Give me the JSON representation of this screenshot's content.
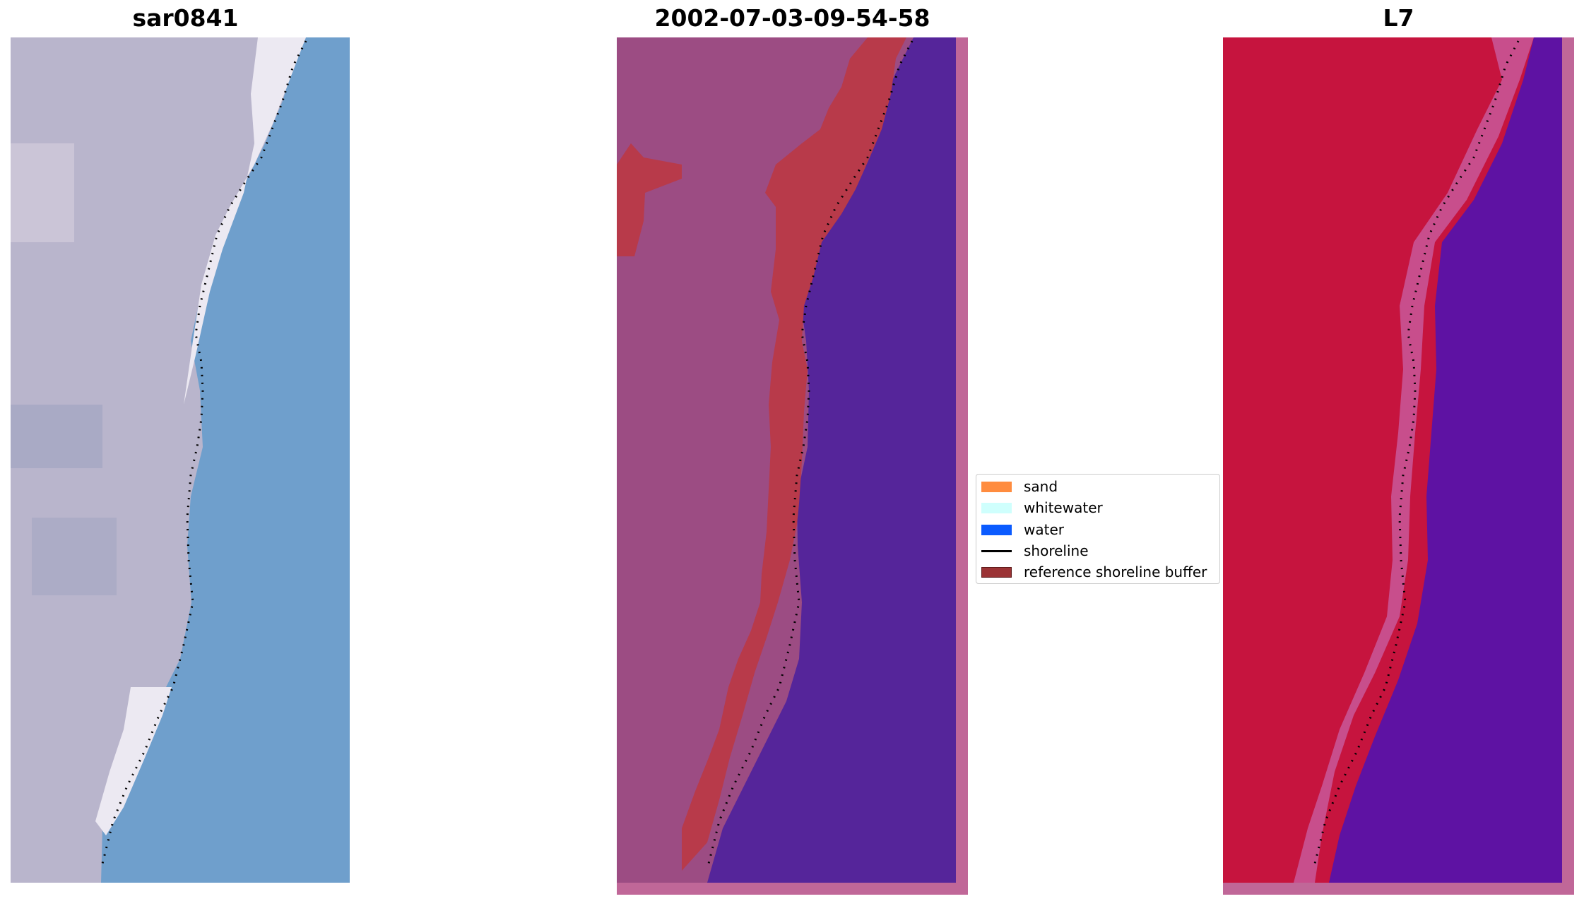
{
  "panels": [
    {
      "title": "sar0841"
    },
    {
      "title": "2002-07-03-09-54-58"
    },
    {
      "title": "L7"
    }
  ],
  "legend": {
    "items": [
      {
        "label": "sand",
        "kind": "patch",
        "color": "#ff8c3f"
      },
      {
        "label": "whitewater",
        "kind": "patch",
        "color": "#cffffd"
      },
      {
        "label": "water",
        "kind": "patch",
        "color": "#0b5bff"
      },
      {
        "label": "shoreline",
        "kind": "line",
        "color": "#000000"
      },
      {
        "label": "reference shoreline buffer",
        "kind": "patch",
        "color": "#9b3335",
        "edge": "#5e1a1a"
      }
    ]
  },
  "colors": {
    "rgb_land": "#b9b5cc",
    "rgb_beach": "#f2f0f6",
    "rgb_water": "#6f9fcc",
    "class_land": "#9c4c83",
    "class_buffer": "#b83a4a",
    "class_water": "#55259a",
    "class_border": "#c06798",
    "ndwi_land": "#c6143e",
    "ndwi_water": "#5e12a3",
    "ndwi_border": "#c06798",
    "shoreline": "#000000"
  }
}
